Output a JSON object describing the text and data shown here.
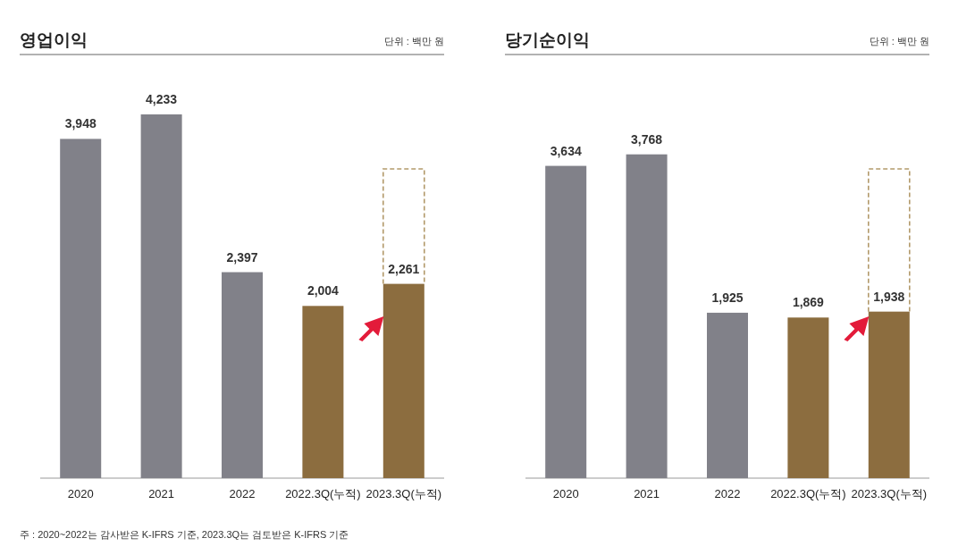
{
  "chart_data": [
    {
      "type": "bar",
      "title": "영업이익",
      "subtitle": "단위 : 백만 원",
      "categories": [
        "2020",
        "2021",
        "2022",
        "2022.3Q(누적)",
        "2023.3Q(누적)"
      ],
      "values": [
        3948,
        4233,
        2397,
        2004,
        2261
      ],
      "value_labels": [
        "3,948",
        "4,233",
        "2,397",
        "2,004",
        "2,261"
      ],
      "colors": [
        "#818189",
        "#818189",
        "#818189",
        "#8c6d3f",
        "#8c6d3f"
      ],
      "annotations": [
        "주 : 2020~2022는 감사받은 K-IFRS 기준, 2023.3Q는 검토받은 K-IFRS 기준"
      ]
    },
    {
      "type": "bar",
      "title": "당기순이익",
      "subtitle": "단위 : 백만 원",
      "categories": [
        "2020",
        "2021",
        "2022",
        "2022.3Q(누적)",
        "2023.3Q(누적)"
      ],
      "values": [
        3634,
        3768,
        1925,
        1869,
        1938
      ],
      "value_labels": [
        "3,634",
        "3,768",
        "1,925",
        "1,869",
        "1,938"
      ],
      "colors": [
        "#818189",
        "#818189",
        "#818189",
        "#8c6d3f",
        "#8c6d3f"
      ]
    }
  ]
}
